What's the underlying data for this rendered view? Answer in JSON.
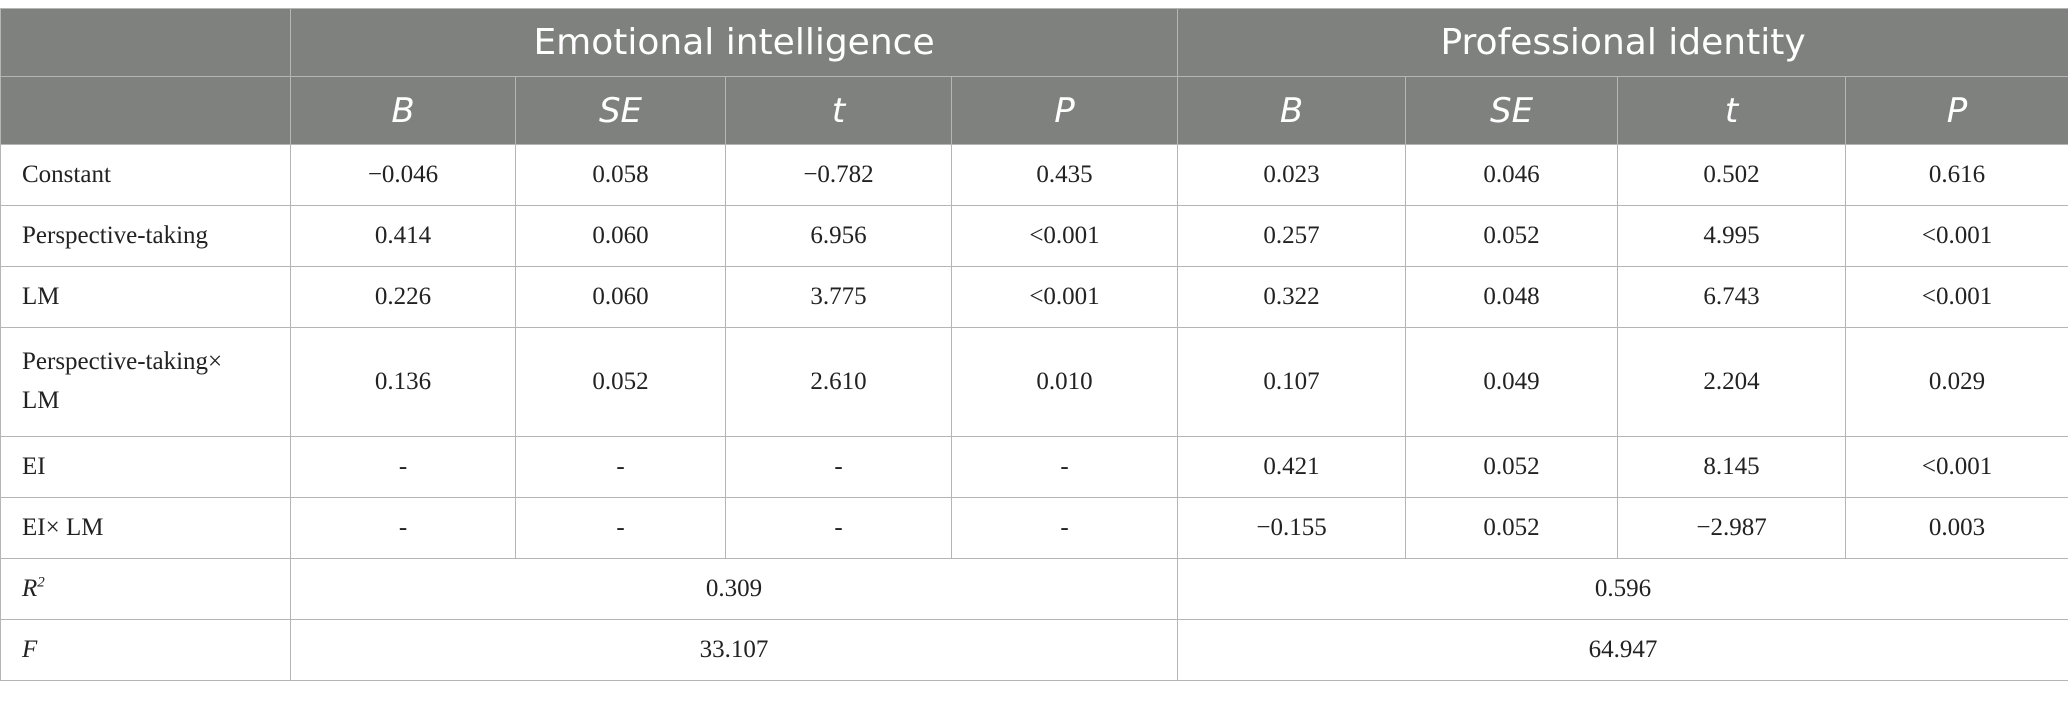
{
  "header": {
    "group1": "Emotional intelligence",
    "group2": "Professional identity",
    "columns": [
      "B",
      "SE",
      "t",
      "P",
      "B",
      "SE",
      "t",
      "P"
    ]
  },
  "rows": [
    {
      "label": "Constant",
      "cells": [
        "−0.046",
        "0.058",
        "−0.782",
        "0.435",
        "0.023",
        "0.046",
        "0.502",
        "0.616"
      ]
    },
    {
      "label": "Perspective-taking",
      "cells": [
        "0.414",
        "0.060",
        "6.956",
        "<0.001",
        "0.257",
        "0.052",
        "4.995",
        "<0.001"
      ]
    },
    {
      "label": "LM",
      "cells": [
        "0.226",
        "0.060",
        "3.775",
        "<0.001",
        "0.322",
        "0.048",
        "6.743",
        "<0.001"
      ]
    },
    {
      "label_line1": "Perspective-taking×",
      "label_line2": "LM",
      "cells": [
        "0.136",
        "0.052",
        "2.610",
        "0.010",
        "0.107",
        "0.049",
        "2.204",
        "0.029"
      ]
    },
    {
      "label": "EI",
      "cells": [
        "-",
        "-",
        "-",
        "-",
        "0.421",
        "0.052",
        "8.145",
        "<0.001"
      ]
    },
    {
      "label": "EI× LM",
      "cells": [
        "-",
        "-",
        "-",
        "-",
        "−0.155",
        "0.052",
        "−2.987",
        "0.003"
      ]
    }
  ],
  "summary": {
    "r2": {
      "label": "R",
      "sup": "2",
      "ei": "0.309",
      "pi": "0.596"
    },
    "f": {
      "label": "F",
      "ei": "33.107",
      "pi": "64.947"
    }
  }
}
